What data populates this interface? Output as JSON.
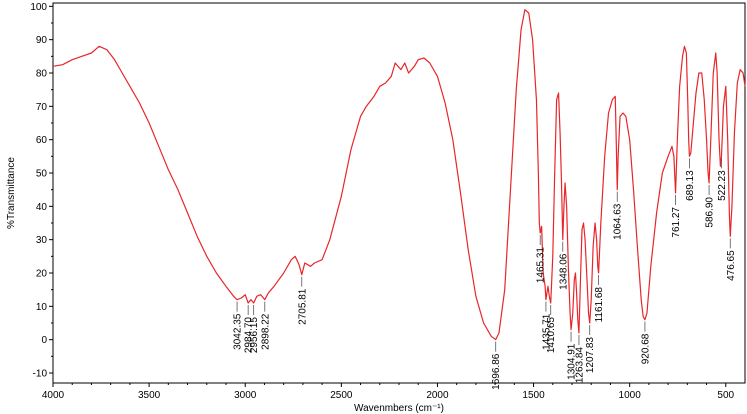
{
  "chart_data": {
    "type": "line",
    "title": "",
    "xlabel": "Wavenmbers (cm⁻¹)",
    "ylabel": "%Transmittance",
    "xlim": [
      4000,
      400
    ],
    "ylim": [
      -13,
      101
    ],
    "x_reversed": true,
    "x_ticks": [
      4000,
      3500,
      3000,
      2500,
      2000,
      1500,
      1000,
      500
    ],
    "y_ticks": [
      -10,
      0,
      10,
      20,
      30,
      40,
      50,
      60,
      70,
      80,
      90,
      100
    ],
    "grid": false,
    "legend": "none",
    "line_color": "#e8262a",
    "series": [
      {
        "values_xy": [
          [
            4000,
            82
          ],
          [
            3950,
            82.5
          ],
          [
            3900,
            84
          ],
          [
            3850,
            85
          ],
          [
            3800,
            86
          ],
          [
            3760,
            88
          ],
          [
            3720,
            87
          ],
          [
            3680,
            84
          ],
          [
            3640,
            80
          ],
          [
            3600,
            76
          ],
          [
            3550,
            71
          ],
          [
            3500,
            65
          ],
          [
            3450,
            58
          ],
          [
            3400,
            51
          ],
          [
            3350,
            45
          ],
          [
            3300,
            38
          ],
          [
            3250,
            31
          ],
          [
            3200,
            25
          ],
          [
            3150,
            20
          ],
          [
            3100,
            16
          ],
          [
            3060,
            13
          ],
          [
            3042.35,
            12
          ],
          [
            3020,
            12.5
          ],
          [
            3000,
            13.5
          ],
          [
            2984.7,
            11
          ],
          [
            2970,
            12
          ],
          [
            2956.15,
            11
          ],
          [
            2940,
            13
          ],
          [
            2920,
            13.5
          ],
          [
            2898.22,
            12
          ],
          [
            2880,
            14
          ],
          [
            2850,
            16
          ],
          [
            2800,
            20
          ],
          [
            2760,
            24
          ],
          [
            2740,
            25
          ],
          [
            2720,
            22.5
          ],
          [
            2705.81,
            19.5
          ],
          [
            2690,
            23
          ],
          [
            2660,
            22
          ],
          [
            2640,
            23
          ],
          [
            2600,
            24
          ],
          [
            2560,
            30
          ],
          [
            2500,
            43
          ],
          [
            2450,
            57
          ],
          [
            2400,
            67
          ],
          [
            2370,
            70
          ],
          [
            2330,
            73
          ],
          [
            2300,
            76
          ],
          [
            2270,
            77
          ],
          [
            2240,
            79
          ],
          [
            2220,
            83
          ],
          [
            2190,
            81
          ],
          [
            2170,
            83
          ],
          [
            2150,
            80
          ],
          [
            2120,
            82
          ],
          [
            2100,
            84
          ],
          [
            2070,
            84.5
          ],
          [
            2040,
            83
          ],
          [
            2000,
            79
          ],
          [
            1960,
            71
          ],
          [
            1920,
            60
          ],
          [
            1880,
            44
          ],
          [
            1840,
            27
          ],
          [
            1800,
            13
          ],
          [
            1760,
            5
          ],
          [
            1720,
            1
          ],
          [
            1696.86,
            0
          ],
          [
            1680,
            2
          ],
          [
            1650,
            15
          ],
          [
            1620,
            45
          ],
          [
            1590,
            75
          ],
          [
            1565,
            93
          ],
          [
            1545,
            99
          ],
          [
            1525,
            98
          ],
          [
            1505,
            90
          ],
          [
            1485,
            72
          ],
          [
            1475,
            50
          ],
          [
            1470,
            35
          ],
          [
            1465.31,
            32
          ],
          [
            1458,
            34
          ],
          [
            1450,
            20
          ],
          [
            1440,
            16
          ],
          [
            1435.71,
            12
          ],
          [
            1425,
            16
          ],
          [
            1418,
            13
          ],
          [
            1410.65,
            11
          ],
          [
            1400,
            25
          ],
          [
            1390,
            50
          ],
          [
            1380,
            72
          ],
          [
            1370,
            74
          ],
          [
            1362,
            62
          ],
          [
            1355,
            48
          ],
          [
            1348.06,
            30
          ],
          [
            1342,
            40
          ],
          [
            1336,
            47
          ],
          [
            1328,
            40
          ],
          [
            1318,
            20
          ],
          [
            1310,
            8
          ],
          [
            1304.91,
            3
          ],
          [
            1296,
            8
          ],
          [
            1288,
            18
          ],
          [
            1282,
            20
          ],
          [
            1276,
            14
          ],
          [
            1270,
            6
          ],
          [
            1263.84,
            2
          ],
          [
            1256,
            18
          ],
          [
            1248,
            33
          ],
          [
            1240,
            35
          ],
          [
            1232,
            30
          ],
          [
            1222,
            18
          ],
          [
            1214,
            8
          ],
          [
            1207.83,
            5
          ],
          [
            1200,
            12
          ],
          [
            1190,
            28
          ],
          [
            1180,
            35
          ],
          [
            1172,
            30
          ],
          [
            1166,
            22
          ],
          [
            1161.68,
            20
          ],
          [
            1150,
            35
          ],
          [
            1130,
            55
          ],
          [
            1110,
            68
          ],
          [
            1090,
            72
          ],
          [
            1075,
            73
          ],
          [
            1070,
            60
          ],
          [
            1064.63,
            45
          ],
          [
            1060,
            55
          ],
          [
            1050,
            67
          ],
          [
            1035,
            68
          ],
          [
            1020,
            67
          ],
          [
            1000,
            60
          ],
          [
            980,
            45
          ],
          [
            960,
            28
          ],
          [
            940,
            12
          ],
          [
            930,
            7
          ],
          [
            920.68,
            6
          ],
          [
            910,
            8
          ],
          [
            890,
            22
          ],
          [
            860,
            38
          ],
          [
            830,
            50
          ],
          [
            800,
            55
          ],
          [
            780,
            58
          ],
          [
            770,
            55
          ],
          [
            761.27,
            44
          ],
          [
            752,
            60
          ],
          [
            740,
            76
          ],
          [
            725,
            85
          ],
          [
            715,
            88
          ],
          [
            705,
            86
          ],
          [
            698,
            72
          ],
          [
            693,
            60
          ],
          [
            689.13,
            55
          ],
          [
            682,
            56
          ],
          [
            670,
            64
          ],
          [
            655,
            74
          ],
          [
            640,
            80
          ],
          [
            625,
            80
          ],
          [
            612,
            72
          ],
          [
            600,
            60
          ],
          [
            592,
            50
          ],
          [
            586.9,
            47
          ],
          [
            578,
            60
          ],
          [
            565,
            80
          ],
          [
            552,
            86
          ],
          [
            545,
            80
          ],
          [
            535,
            60
          ],
          [
            528,
            52
          ],
          [
            522.23,
            55
          ],
          [
            512,
            70
          ],
          [
            500,
            76
          ],
          [
            490,
            60
          ],
          [
            481,
            37
          ],
          [
            476.65,
            31
          ],
          [
            468,
            40
          ],
          [
            455,
            62
          ],
          [
            440,
            77
          ],
          [
            425,
            81
          ],
          [
            410,
            80
          ],
          [
            400,
            76
          ]
        ]
      }
    ],
    "annotations": [
      {
        "label": "3042.35",
        "x": 3042.35,
        "y": 12
      },
      {
        "label": "2984.70",
        "x": 2984.7,
        "y": 11
      },
      {
        "label": "2956.15",
        "x": 2956.15,
        "y": 11
      },
      {
        "label": "2898.22",
        "x": 2898.22,
        "y": 12
      },
      {
        "label": "2705.81",
        "x": 2705.81,
        "y": 19.5
      },
      {
        "label": "1696.86",
        "x": 1696.86,
        "y": 0
      },
      {
        "label": "1465.31",
        "x": 1465.31,
        "y": 32
      },
      {
        "label": "1435.71",
        "x": 1435.71,
        "y": 12
      },
      {
        "label": "1410.65",
        "x": 1410.65,
        "y": 11
      },
      {
        "label": "1348.06",
        "x": 1348.06,
        "y": 30
      },
      {
        "label": "1304.91",
        "x": 1304.91,
        "y": 3
      },
      {
        "label": "1263.84",
        "x": 1263.84,
        "y": 2
      },
      {
        "label": "1207.83",
        "x": 1207.83,
        "y": 5
      },
      {
        "label": "1161.68",
        "x": 1161.68,
        "y": 20
      },
      {
        "label": "1064.63",
        "x": 1064.63,
        "y": 45
      },
      {
        "label": "920.68",
        "x": 920.68,
        "y": 6
      },
      {
        "label": "761.27",
        "x": 761.27,
        "y": 44
      },
      {
        "label": "689.13",
        "x": 689.13,
        "y": 55
      },
      {
        "label": "586.90",
        "x": 586.9,
        "y": 47
      },
      {
        "label": "522.23",
        "x": 522.23,
        "y": 55
      },
      {
        "label": "476.65",
        "x": 476.65,
        "y": 31
      }
    ]
  }
}
